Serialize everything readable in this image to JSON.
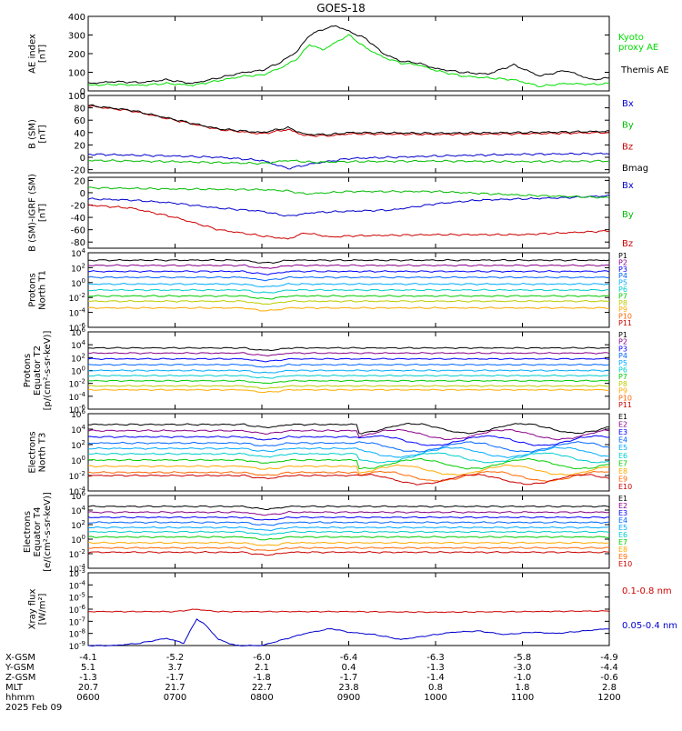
{
  "title": "GOES-18",
  "chart_data": [
    {
      "type": "line",
      "panel": "ae_index",
      "ylabel": [
        "AE index",
        "[nT]"
      ],
      "ylim": [
        0,
        400
      ],
      "yticks": [
        {
          "v": 0,
          "t": "0"
        },
        {
          "v": 100,
          "t": "100"
        },
        {
          "v": 200,
          "t": "200"
        },
        {
          "v": 300,
          "t": "300"
        },
        {
          "v": 400,
          "t": "400"
        }
      ],
      "series": [
        {
          "name": "Kyoto proxy AE",
          "label_lines": [
            "Kyoto",
            "proxy AE"
          ],
          "color": "#00dd00",
          "x": [
            6,
            6.3,
            6.6,
            6.9,
            7.2,
            7.5,
            7.8,
            8.0,
            8.2,
            8.4,
            8.55,
            8.7,
            8.85,
            9.0,
            9.2,
            9.4,
            9.6,
            9.8,
            10.0,
            10.3,
            10.6,
            10.9,
            11.2,
            11.5,
            11.8,
            12
          ],
          "values": [
            30,
            35,
            30,
            40,
            30,
            55,
            80,
            85,
            120,
            170,
            250,
            220,
            260,
            300,
            230,
            180,
            150,
            140,
            110,
            80,
            70,
            60,
            25,
            40,
            35,
            40
          ]
        },
        {
          "name": "Themis AE",
          "label_lines": [
            "Themis AE"
          ],
          "color": "#000000",
          "x": [
            6,
            6.3,
            6.6,
            6.9,
            7.2,
            7.5,
            7.8,
            8.0,
            8.2,
            8.4,
            8.55,
            8.7,
            8.85,
            9.0,
            9.2,
            9.4,
            9.6,
            9.8,
            10.0,
            10.3,
            10.6,
            10.9,
            11.2,
            11.5,
            11.8,
            12
          ],
          "values": [
            40,
            50,
            45,
            60,
            40,
            70,
            100,
            110,
            150,
            210,
            300,
            330,
            350,
            320,
            280,
            200,
            160,
            150,
            120,
            100,
            90,
            140,
            80,
            110,
            60,
            70
          ]
        }
      ]
    },
    {
      "type": "line",
      "panel": "b_sm",
      "ylabel": [
        "B (SM)",
        "[nT]"
      ],
      "ylim": [
        -25,
        100
      ],
      "yticks": [
        {
          "v": -20,
          "t": "-20"
        },
        {
          "v": 0,
          "t": "0"
        },
        {
          "v": 20,
          "t": "20"
        },
        {
          "v": 40,
          "t": "40"
        },
        {
          "v": 60,
          "t": "60"
        },
        {
          "v": 80,
          "t": "80"
        },
        {
          "v": 100,
          "t": "100"
        }
      ],
      "series": [
        {
          "name": "Bx",
          "color": "#0000cc",
          "x": [
            6,
            7,
            7.5,
            8,
            8.3,
            8.6,
            9,
            10,
            11,
            12
          ],
          "values": [
            5,
            2,
            0,
            -5,
            -18,
            -10,
            -2,
            2,
            5,
            6
          ]
        },
        {
          "name": "By",
          "color": "#00bb00",
          "x": [
            6,
            7,
            8,
            8.3,
            8.6,
            9,
            10,
            11,
            12
          ],
          "values": [
            -5,
            -7,
            -10,
            -5,
            -8,
            -7,
            -6,
            -7,
            -6
          ]
        },
        {
          "name": "Bz",
          "color": "#cc0000",
          "x": [
            6,
            6.5,
            7,
            7.5,
            8,
            8.3,
            8.5,
            8.8,
            9,
            10,
            11,
            12
          ],
          "values": [
            83,
            75,
            60,
            45,
            38,
            45,
            35,
            35,
            38,
            37,
            38,
            40
          ]
        },
        {
          "name": "Bmag",
          "color": "#000000",
          "x": [
            6,
            6.5,
            7,
            7.5,
            8,
            8.3,
            8.5,
            8.8,
            9,
            10,
            11,
            12
          ],
          "values": [
            84,
            76,
            61,
            46,
            40,
            48,
            37,
            37,
            40,
            39,
            40,
            42
          ]
        }
      ]
    },
    {
      "type": "line",
      "panel": "b_sm_igrf",
      "ylabel": [
        "B (SM)-IGRF (SM)",
        "[nT]"
      ],
      "ylim": [
        -90,
        25
      ],
      "yticks": [
        {
          "v": -80,
          "t": "-80"
        },
        {
          "v": -60,
          "t": "-60"
        },
        {
          "v": -40,
          "t": "-40"
        },
        {
          "v": -20,
          "t": "-20"
        },
        {
          "v": 0,
          "t": "0"
        },
        {
          "v": 20,
          "t": "20"
        }
      ],
      "series": [
        {
          "name": "Bx",
          "color": "#0000cc",
          "x": [
            6,
            6.5,
            7,
            7.5,
            8,
            8.3,
            8.6,
            9,
            9.5,
            10,
            10.5,
            11,
            11.5,
            12
          ],
          "values": [
            -10,
            -12,
            -17,
            -25,
            -30,
            -38,
            -32,
            -30,
            -28,
            -18,
            -12,
            -10,
            -8,
            -5
          ]
        },
        {
          "name": "By",
          "color": "#00bb00",
          "x": [
            6,
            7,
            8,
            8.3,
            8.5,
            9,
            10,
            11,
            12
          ],
          "values": [
            8,
            6,
            5,
            3,
            -2,
            2,
            2,
            -4,
            -8
          ]
        },
        {
          "name": "Bz",
          "color": "#cc0000",
          "x": [
            6,
            6.5,
            7,
            7.5,
            8,
            8.3,
            8.5,
            8.8,
            9,
            10,
            11,
            12
          ],
          "values": [
            -20,
            -25,
            -40,
            -60,
            -70,
            -75,
            -65,
            -72,
            -70,
            -68,
            -68,
            -62
          ]
        }
      ]
    },
    {
      "type": "line",
      "panel": "protons_t1",
      "ylabel": [
        "Protons",
        "North T1"
      ],
      "yscale": "log",
      "ylim_exp": [
        -6,
        4
      ],
      "yticks": [
        {
          "v": 4,
          "t": "10^4"
        },
        {
          "v": 2,
          "t": "10^2"
        },
        {
          "v": 0,
          "t": "10^0"
        },
        {
          "v": -2,
          "t": "10^-2"
        },
        {
          "v": -4,
          "t": "10^-4"
        },
        {
          "v": -6,
          "t": "10^-6"
        }
      ],
      "channels": [
        {
          "name": "P1",
          "color": "#000000",
          "level": 3.0
        },
        {
          "name": "P2",
          "color": "#880088",
          "level": 2.3
        },
        {
          "name": "P3",
          "color": "#0000ff",
          "level": 1.5
        },
        {
          "name": "P4",
          "color": "#0066ff",
          "level": 0.7
        },
        {
          "name": "P5",
          "color": "#00aaff",
          "level": -0.2
        },
        {
          "name": "P6",
          "color": "#00cccc",
          "level": -1.0
        },
        {
          "name": "P7",
          "color": "#00cc00",
          "level": -1.8
        },
        {
          "name": "P8",
          "color": "#bbcc00",
          "level": -2.5
        },
        {
          "name": "P9",
          "color": "#ffaa00",
          "level": -3.4
        },
        {
          "name": "P10",
          "color": "#ff6600",
          "level": null
        },
        {
          "name": "P11",
          "color": "#cc0000",
          "level": null
        }
      ]
    },
    {
      "type": "line",
      "panel": "protons_t2",
      "ylabel": [
        "Protons",
        "Equator T2",
        "[p/(cm²-s-sr-keV)]"
      ],
      "yscale": "log",
      "ylim_exp": [
        -6,
        6
      ],
      "yticks": [
        {
          "v": 6,
          "t": "10^6"
        },
        {
          "v": 4,
          "t": "10^4"
        },
        {
          "v": 2,
          "t": "10^2"
        },
        {
          "v": 0,
          "t": "10^0"
        },
        {
          "v": -2,
          "t": "10^-2"
        },
        {
          "v": -4,
          "t": "10^-4"
        },
        {
          "v": -6,
          "t": "10^-6"
        }
      ],
      "channels": [
        {
          "name": "P1",
          "color": "#000000",
          "level": 3.5
        },
        {
          "name": "P2",
          "color": "#880088",
          "level": 2.7
        },
        {
          "name": "P3",
          "color": "#0000ff",
          "level": 1.8
        },
        {
          "name": "P4",
          "color": "#0066ff",
          "level": 0.9
        },
        {
          "name": "P5",
          "color": "#00aaff",
          "level": 0.0
        },
        {
          "name": "P6",
          "color": "#00cccc",
          "level": -0.8
        },
        {
          "name": "P7",
          "color": "#00cc00",
          "level": -1.6
        },
        {
          "name": "P8",
          "color": "#bbcc00",
          "level": -2.4
        },
        {
          "name": "P9",
          "color": "#ffaa00",
          "level": -3.0
        },
        {
          "name": "P10",
          "color": "#ff6600",
          "level": null
        },
        {
          "name": "P11",
          "color": "#cc0000",
          "level": null
        }
      ]
    },
    {
      "type": "line",
      "panel": "electrons_t3",
      "ylabel": [
        "Electrons",
        "North T3"
      ],
      "yscale": "log",
      "ylim_exp": [
        -4,
        6
      ],
      "yticks": [
        {
          "v": 6,
          "t": "10^6"
        },
        {
          "v": 4,
          "t": "10^4"
        },
        {
          "v": 2,
          "t": "10^2"
        },
        {
          "v": 0,
          "t": "10^0"
        },
        {
          "v": -2,
          "t": "10^-2"
        },
        {
          "v": -4,
          "t": "10^-4"
        }
      ],
      "channels": [
        {
          "name": "E1",
          "color": "#000000",
          "level": 4.6
        },
        {
          "name": "E2",
          "color": "#880088",
          "level": 3.8
        },
        {
          "name": "E3",
          "color": "#0000ff",
          "level": 3.0
        },
        {
          "name": "E4",
          "color": "#0066ff",
          "level": 2.2
        },
        {
          "name": "E5",
          "color": "#00aaff",
          "level": 1.5
        },
        {
          "name": "E6",
          "color": "#00cccc",
          "level": 0.8
        },
        {
          "name": "E7",
          "color": "#00cc00",
          "level": 0.0
        },
        {
          "name": "E8",
          "color": "#ffaa00",
          "level": -0.8
        },
        {
          "name": "E9",
          "color": "#ff6600",
          "level": -1.6
        },
        {
          "name": "E10",
          "color": "#cc0000",
          "level": -2.0
        }
      ]
    },
    {
      "type": "line",
      "panel": "electrons_t4",
      "ylabel": [
        "Electrons",
        "Equator T4",
        "[e/(cm²-s-sr-keV)]"
      ],
      "yscale": "log",
      "ylim_exp": [
        -4,
        6
      ],
      "yticks": [
        {
          "v": 6,
          "t": "10^6"
        },
        {
          "v": 4,
          "t": "10^4"
        },
        {
          "v": 2,
          "t": "10^2"
        },
        {
          "v": 0,
          "t": "10^0"
        },
        {
          "v": -2,
          "t": "10^-2"
        },
        {
          "v": -4,
          "t": "10^-4"
        }
      ],
      "channels": [
        {
          "name": "E1",
          "color": "#000000",
          "level": 4.5
        },
        {
          "name": "E2",
          "color": "#880088",
          "level": 3.7
        },
        {
          "name": "E3",
          "color": "#0000ff",
          "level": 3.0
        },
        {
          "name": "E4",
          "color": "#0066ff",
          "level": 2.3
        },
        {
          "name": "E5",
          "color": "#00aaff",
          "level": 1.6
        },
        {
          "name": "E6",
          "color": "#00cccc",
          "level": 1.0
        },
        {
          "name": "E7",
          "color": "#00cc00",
          "level": 0.3
        },
        {
          "name": "E8",
          "color": "#ffaa00",
          "level": -0.5
        },
        {
          "name": "E9",
          "color": "#ff6600",
          "level": -1.2
        },
        {
          "name": "E10",
          "color": "#cc0000",
          "level": -1.8
        }
      ]
    },
    {
      "type": "line",
      "panel": "xray",
      "ylabel": [
        "Xray flux",
        "[W/m²]"
      ],
      "yscale": "log",
      "ylim_exp": [
        -9,
        -3
      ],
      "yticks": [
        {
          "v": -3,
          "t": "10^-3"
        },
        {
          "v": -4,
          "t": "10^-4"
        },
        {
          "v": -5,
          "t": "10^-5"
        },
        {
          "v": -6,
          "t": "10^-6"
        },
        {
          "v": -7,
          "t": "10^-7"
        },
        {
          "v": -8,
          "t": "10^-8"
        },
        {
          "v": -9,
          "t": "10^-9"
        }
      ],
      "series": [
        {
          "name": "0.1-0.8 nm",
          "color": "#cc0000",
          "x": [
            6,
            6.5,
            7.0,
            7.25,
            7.35,
            7.5,
            8,
            9,
            10,
            11,
            12
          ],
          "values": [
            -6.2,
            -6.2,
            -6.2,
            -6.0,
            -6.1,
            -6.2,
            -6.2,
            -6.2,
            -6.25,
            -6.2,
            -6.15
          ]
        },
        {
          "name": "0.05-0.4 nm",
          "color": "#0000cc",
          "x": [
            6,
            6.3,
            6.6,
            6.9,
            7.1,
            7.25,
            7.35,
            7.5,
            7.7,
            8.0,
            8.2,
            8.5,
            8.8,
            9.0,
            9.3,
            9.6,
            9.9,
            10.2,
            10.5,
            10.8,
            11.1,
            11.4,
            11.7,
            12
          ],
          "values": [
            -9,
            -9,
            -8.8,
            -8.4,
            -8.8,
            -6.8,
            -7.3,
            -8.5,
            -9,
            -9,
            -8.6,
            -8.0,
            -7.6,
            -7.9,
            -8.1,
            -8.5,
            -8.2,
            -7.9,
            -7.8,
            -8.1,
            -7.9,
            -8.0,
            -7.8,
            -7.6
          ]
        }
      ]
    }
  ],
  "x_axis": {
    "xlim": [
      6,
      12
    ],
    "ticks": [
      6,
      7,
      8,
      9,
      10,
      11,
      12
    ],
    "rows": [
      {
        "label": "X-GSM",
        "values": [
          "-4.1",
          "-5.2",
          "-6.0",
          "-6.4",
          "-6.3",
          "-5.8",
          "-4.9"
        ]
      },
      {
        "label": "Y-GSM",
        "values": [
          "5.1",
          "3.7",
          "2.1",
          "0.4",
          "-1.3",
          "-3.0",
          "-4.4"
        ]
      },
      {
        "label": "Z-GSM",
        "values": [
          "-1.3",
          "-1.7",
          "-1.8",
          "-1.7",
          "-1.4",
          "-1.0",
          "-0.6"
        ]
      },
      {
        "label": "MLT",
        "values": [
          "20.7",
          "21.7",
          "22.7",
          "23.8",
          "0.8",
          "1.8",
          "2.8"
        ]
      },
      {
        "label": "hhmm",
        "values": [
          "0600",
          "0700",
          "0800",
          "0900",
          "1000",
          "1100",
          "1200"
        ]
      }
    ],
    "date": "2025 Feb 09"
  }
}
